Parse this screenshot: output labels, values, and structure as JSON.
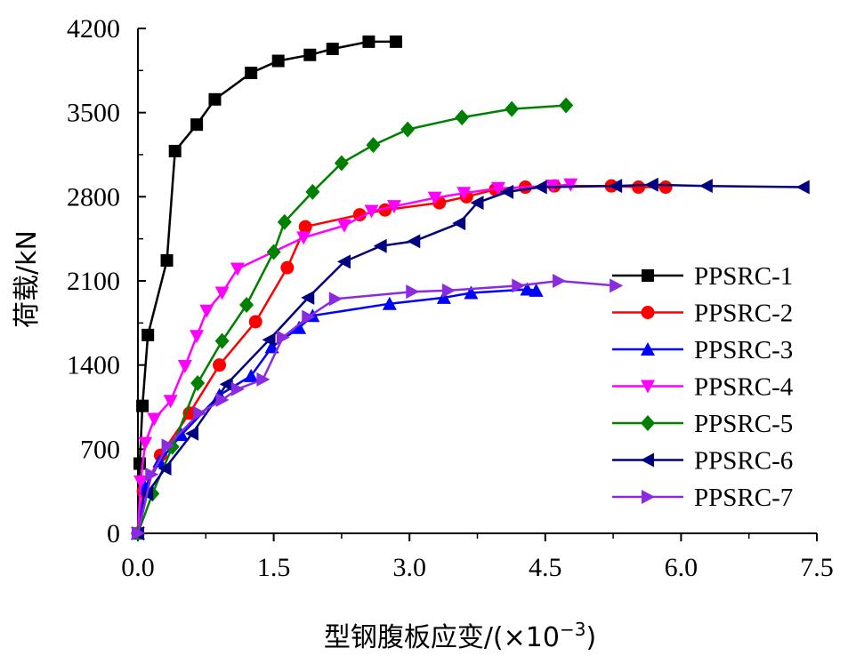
{
  "chart_data": {
    "type": "line",
    "title": "",
    "xlabel": "型钢腹板应变/(×10",
    "xlabel_sup": "−3",
    "xlabel_tail": ")",
    "ylabel": "荷载/kN",
    "xlim": [
      0,
      7.5
    ],
    "ylim": [
      0,
      4200
    ],
    "x_ticks": [
      0.0,
      1.5,
      3.0,
      4.5,
      6.0,
      7.5
    ],
    "x_tick_labels": [
      "0.0",
      "1.5",
      "3.0",
      "4.5",
      "6.0",
      "7.5"
    ],
    "y_ticks": [
      0,
      700,
      1400,
      2100,
      2800,
      3500,
      4200
    ],
    "y_tick_labels": [
      "0",
      "700",
      "1400",
      "2100",
      "2800",
      "3500",
      "4200"
    ],
    "grid": false,
    "legend_position": "right",
    "series": [
      {
        "name": "PPSRC-1",
        "color": "#000000",
        "marker": "square",
        "x": [
          0.0,
          0.02,
          0.05,
          0.11,
          0.32,
          0.41,
          0.65,
          0.85,
          1.25,
          1.55,
          1.9,
          2.15,
          2.55,
          2.85
        ],
        "y": [
          0,
          580,
          1060,
          1650,
          2270,
          3180,
          3400,
          3610,
          3830,
          3930,
          3980,
          4030,
          4090,
          4090
        ]
      },
      {
        "name": "PPSRC-2",
        "color": "#ff0000",
        "marker": "circle",
        "x": [
          0.0,
          0.06,
          0.25,
          0.57,
          0.9,
          1.3,
          1.65,
          1.85,
          2.45,
          2.73,
          3.33,
          3.63,
          3.95,
          4.28,
          4.6,
          5.23,
          5.53,
          5.83
        ],
        "y": [
          0,
          350,
          650,
          1000,
          1400,
          1760,
          2210,
          2550,
          2650,
          2690,
          2750,
          2800,
          2860,
          2880,
          2890,
          2890,
          2880,
          2880
        ]
      },
      {
        "name": "PPSRC-3",
        "color": "#0000ff",
        "marker": "triangle-up",
        "x": [
          0.0,
          0.08,
          0.24,
          0.48,
          0.9,
          1.25,
          1.48,
          1.78,
          1.93,
          2.78,
          3.38,
          3.68,
          4.3,
          4.4
        ],
        "y": [
          0,
          380,
          600,
          820,
          1150,
          1310,
          1550,
          1710,
          1810,
          1910,
          1960,
          2000,
          2030,
          2020
        ]
      },
      {
        "name": "PPSRC-4",
        "color": "#ff00ff",
        "marker": "triangle-down",
        "x": [
          0.0,
          0.03,
          0.08,
          0.18,
          0.36,
          0.52,
          0.65,
          0.76,
          0.93,
          1.1,
          1.83,
          2.28,
          2.58,
          2.83,
          3.28,
          3.6,
          3.98,
          4.58,
          4.78
        ],
        "y": [
          0,
          430,
          750,
          950,
          1100,
          1390,
          1640,
          1850,
          2000,
          2200,
          2460,
          2560,
          2680,
          2720,
          2790,
          2830,
          2870,
          2890,
          2900
        ]
      },
      {
        "name": "PPSRC-5",
        "color": "#008000",
        "marker": "diamond",
        "x": [
          0.0,
          0.16,
          0.38,
          0.66,
          0.93,
          1.2,
          1.5,
          1.62,
          1.93,
          2.25,
          2.6,
          2.98,
          3.58,
          4.13,
          4.73
        ],
        "y": [
          0,
          330,
          720,
          1250,
          1600,
          1900,
          2340,
          2590,
          2840,
          3080,
          3230,
          3360,
          3460,
          3530,
          3560
        ]
      },
      {
        "name": "PPSRC-6",
        "color": "#000080",
        "marker": "triangle-left",
        "x": [
          0.0,
          0.1,
          0.3,
          0.6,
          0.98,
          1.45,
          1.88,
          2.28,
          2.68,
          3.05,
          3.55,
          3.75,
          4.08,
          4.45,
          5.28,
          5.68,
          6.28,
          7.35
        ],
        "y": [
          0,
          330,
          540,
          830,
          1240,
          1610,
          1960,
          2260,
          2390,
          2430,
          2580,
          2750,
          2840,
          2880,
          2890,
          2900,
          2890,
          2880
        ]
      },
      {
        "name": "PPSRC-7",
        "color": "#8a2be2",
        "marker": "triangle-right",
        "x": [
          0.0,
          0.15,
          0.33,
          0.68,
          0.93,
          1.1,
          1.38,
          1.6,
          1.88,
          2.18,
          3.03,
          3.43,
          4.2,
          4.65,
          5.28
        ],
        "y": [
          0,
          490,
          730,
          1000,
          1110,
          1200,
          1280,
          1630,
          1800,
          1950,
          2010,
          2020,
          2060,
          2100,
          2060
        ]
      }
    ]
  }
}
